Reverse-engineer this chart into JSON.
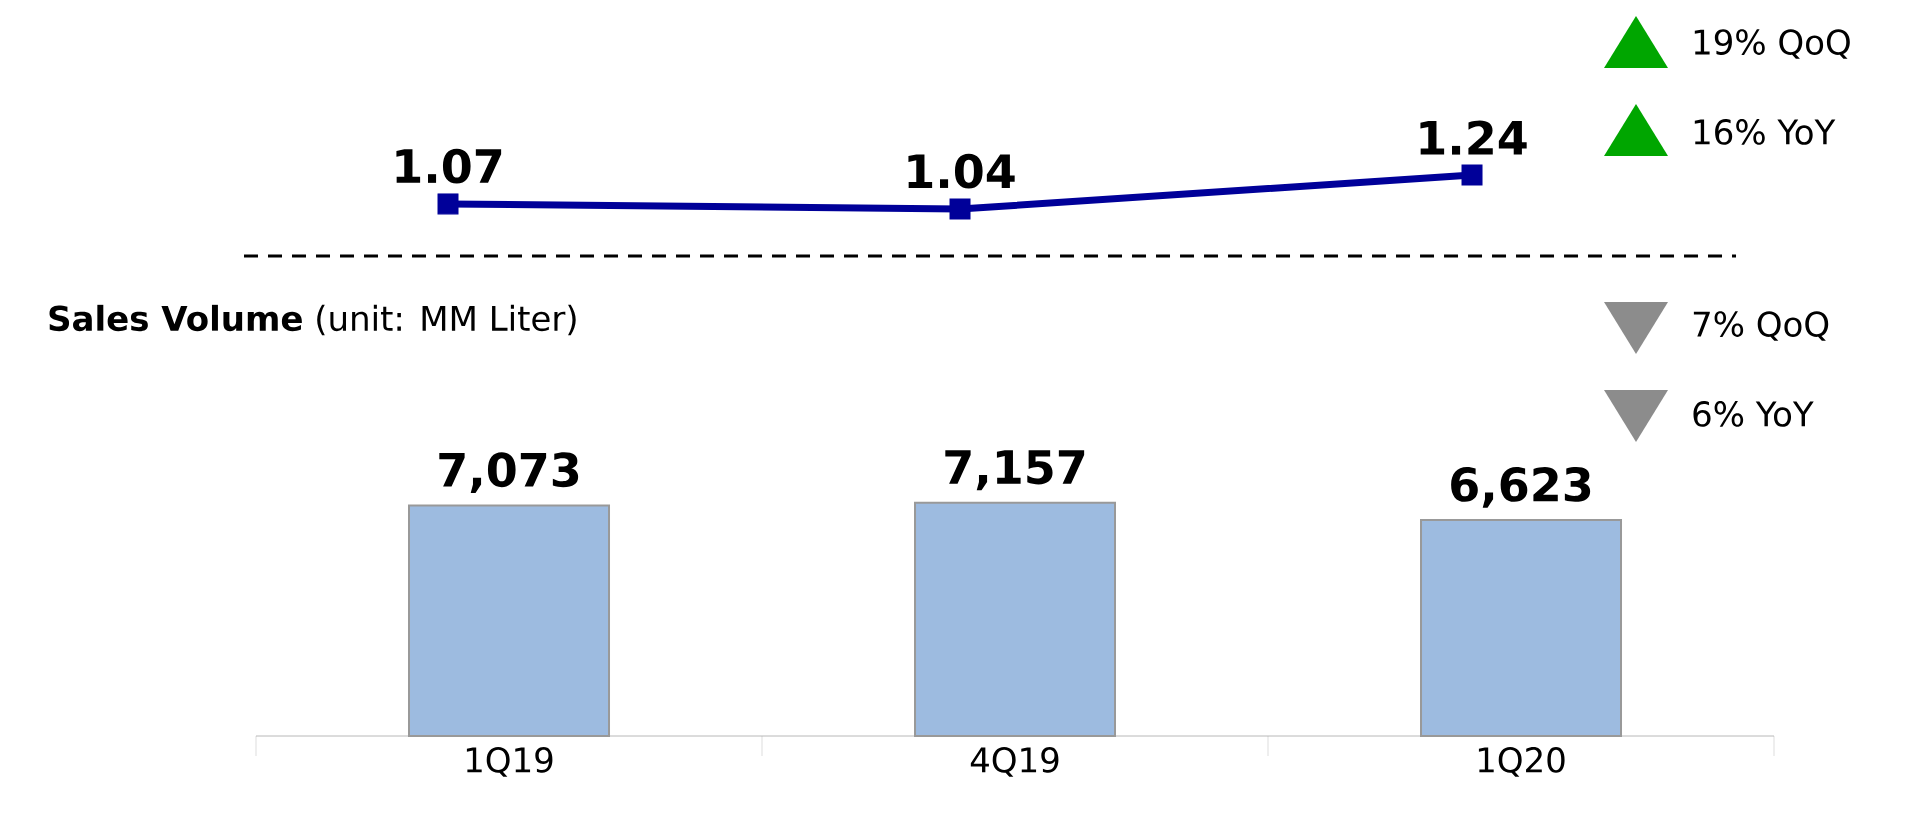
{
  "chart_data": [
    {
      "type": "line",
      "categories": [
        null,
        null,
        null
      ],
      "marker": "square",
      "series": [
        {
          "color": "#000099",
          "values": [
            1.07,
            1.04,
            1.24
          ],
          "value_labels": [
            "1.07",
            "1.04",
            "1.24"
          ]
        }
      ],
      "annotations": [
        "19% QoQ",
        "16% YoY"
      ]
    },
    {
      "type": "bar",
      "title": "**Sales Volume** (unit: MM Liter)",
      "categories": [
        "1Q19",
        "4Q19",
        "1Q20"
      ],
      "values": [
        7073,
        7157,
        6623
      ],
      "value_labels": [
        "7,073",
        "7,157",
        "6,623"
      ],
      "color": "#9dbbe0",
      "annotations": [
        "7% QoQ",
        "6% YoY"
      ]
    }
  ]
}
